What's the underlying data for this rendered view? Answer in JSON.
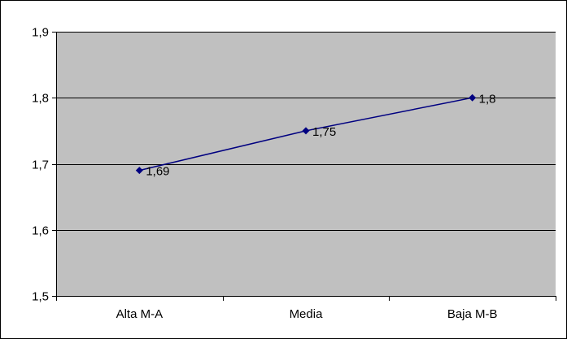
{
  "chart_data": {
    "type": "line",
    "categories": [
      "Alta M-A",
      "Media",
      "Baja M-B"
    ],
    "series": [
      {
        "values": [
          1.69,
          1.75,
          1.8
        ],
        "data_labels": [
          "1,69",
          "1,75",
          "1,8"
        ]
      }
    ],
    "y_ticks": [
      1.5,
      1.6,
      1.7,
      1.8,
      1.9
    ],
    "y_tick_labels": [
      "1,5",
      "1,6",
      "1,7",
      "1,8",
      "1,9"
    ],
    "ylim": [
      1.5,
      1.9
    ],
    "grid": true,
    "legend": "none",
    "title": "",
    "xlabel": "",
    "ylabel": "",
    "colors": {
      "plot_background": "#c0c0c0",
      "line": "#000080",
      "marker": "#000080",
      "grid": "#000000"
    }
  }
}
